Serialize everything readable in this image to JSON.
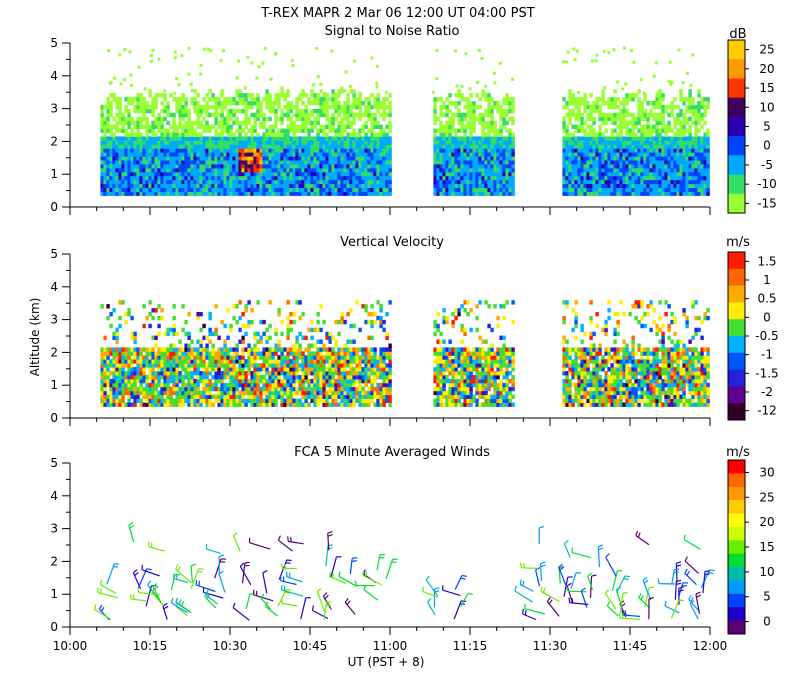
{
  "header": {
    "title": "T-REX   MAPR   2 Mar 06   12:00 UT   04:00   PST"
  },
  "chart_data": [
    {
      "type": "heatmap",
      "title": "Signal to Noise Ratio",
      "ylabel": "",
      "ylim": [
        0,
        5
      ],
      "yticks": [
        "0",
        "1",
        "2",
        "3",
        "4",
        "5"
      ],
      "units": "dB",
      "colorbar_labels": [
        "25",
        "20",
        "15",
        "10",
        "5",
        "0",
        "-5",
        "-10",
        "-15"
      ],
      "colors": [
        "#ffcc00",
        "#ff9900",
        "#ff3300",
        "#400060",
        "#2a00b0",
        "#0044ff",
        "#00aaff",
        "#33dd66",
        "#99ff33"
      ],
      "data_gaps": [
        [
          11.0,
          11.13
        ],
        [
          11.38,
          11.53
        ]
      ],
      "layers": [
        {
          "band": "upper",
          "altitude": [
            2.1,
            3.5
          ],
          "dominant_value_db": -15
        },
        {
          "band": "lower",
          "altitude": [
            0.35,
            2.1
          ],
          "dominant_value_db": -5
        },
        {
          "band": "hotspot",
          "time": "10:33",
          "altitude": [
            1.0,
            1.7
          ],
          "peak_value_db": 25
        }
      ]
    },
    {
      "type": "heatmap",
      "title": "Vertical Velocity",
      "ylabel": "Altitude (km)",
      "ylim": [
        0,
        5
      ],
      "yticks": [
        "0",
        "1",
        "2",
        "3",
        "4",
        "5"
      ],
      "units": "m/s",
      "colorbar_labels": [
        "1.5",
        "1",
        "0.5",
        "0",
        "-0.5",
        "-1",
        "-1.5",
        "-2",
        "-12"
      ],
      "colors": [
        "#ff1a00",
        "#ff6600",
        "#ffaa00",
        "#ffee00",
        "#44dd33",
        "#00b3ff",
        "#0055ff",
        "#2222dd",
        "#600090",
        "#30002a"
      ],
      "data_gaps": [
        [
          11.0,
          11.13
        ],
        [
          11.38,
          11.53
        ]
      ],
      "layers": [
        {
          "band": "dense",
          "altitude": [
            0.35,
            2.0
          ]
        },
        {
          "band": "sparse",
          "altitude": [
            2.0,
            3.5
          ]
        }
      ]
    },
    {
      "type": "scatter",
      "title": "FCA 5 Minute Averaged Winds",
      "ylabel": "",
      "ylim": [
        0,
        5
      ],
      "yticks": [
        "0",
        "1",
        "2",
        "3",
        "4",
        "5"
      ],
      "units": "m/s",
      "colorbar_labels": [
        "30",
        "25",
        "20",
        "15",
        "10",
        "5",
        "0"
      ],
      "colors": [
        "#ff0000",
        "#ff6600",
        "#ff9900",
        "#ffcc00",
        "#ffff00",
        "#ccff00",
        "#66ee00",
        "#00dd33",
        "#00bbaa",
        "#0099ff",
        "#0044ff",
        "#2200cc",
        "#5a0070"
      ],
      "marker": "wind barb",
      "altitude_range_km": [
        0.2,
        2.6
      ],
      "profile_times": [
        "10:08",
        "10:13",
        "10:18",
        "10:23",
        "10:28",
        "10:33",
        "10:38",
        "10:43",
        "10:48",
        "10:53",
        "10:58",
        "11:08",
        "11:13",
        "11:28",
        "11:33",
        "11:38",
        "11:43",
        "11:48",
        "11:53",
        "11:58"
      ]
    }
  ],
  "x_axis": {
    "label": "UT  (PST + 8)",
    "range_hours": [
      10.0,
      12.0
    ],
    "tick_labels": [
      "10:00",
      "10:15",
      "10:30",
      "10:45",
      "11:00",
      "11:15",
      "11:30",
      "11:45",
      "12:00"
    ]
  }
}
